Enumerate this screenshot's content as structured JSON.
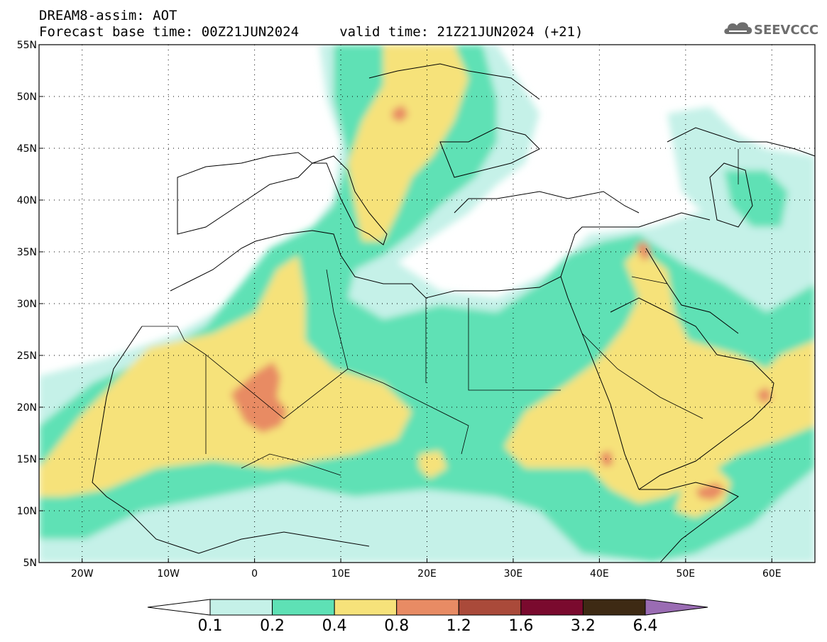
{
  "header": {
    "title_line1": "DREAM8-assim: AOT",
    "title_line2": "Forecast base time: 00Z21JUN2024     valid time: 21Z21JUN2024 (+21)"
  },
  "logo": {
    "text": "SEEVCCC",
    "icon": "cloud-logo-icon"
  },
  "map": {
    "lon_range": [
      -25,
      65
    ],
    "lat_range": [
      5,
      55
    ],
    "lat_ticks": [
      {
        "value": 55,
        "label": "55N"
      },
      {
        "value": 50,
        "label": "50N"
      },
      {
        "value": 45,
        "label": "45N"
      },
      {
        "value": 40,
        "label": "40N"
      },
      {
        "value": 35,
        "label": "35N"
      },
      {
        "value": 30,
        "label": "30N"
      },
      {
        "value": 25,
        "label": "25N"
      },
      {
        "value": 20,
        "label": "20N"
      },
      {
        "value": 15,
        "label": "15N"
      },
      {
        "value": 10,
        "label": "10N"
      },
      {
        "value": 5,
        "label": "5N"
      }
    ],
    "lon_ticks": [
      {
        "value": -20,
        "label": "20W"
      },
      {
        "value": -10,
        "label": "10W"
      },
      {
        "value": 0,
        "label": "0"
      },
      {
        "value": 10,
        "label": "10E"
      },
      {
        "value": 20,
        "label": "20E"
      },
      {
        "value": 30,
        "label": "30E"
      },
      {
        "value": 40,
        "label": "40E"
      },
      {
        "value": 50,
        "label": "50E"
      },
      {
        "value": 60,
        "label": "60E"
      }
    ],
    "grid": "dotted"
  },
  "colorbar": {
    "colors": [
      "#ffffff",
      "#c5f1e8",
      "#5ee1b5",
      "#f6e27a",
      "#e88b64",
      "#aa4a3a",
      "#7a0a2e",
      "#3e2a14",
      "#9a6cb3"
    ],
    "labels": [
      "0.1",
      "0.2",
      "0.4",
      "0.8",
      "1.2",
      "1.6",
      "3.2",
      "6.4"
    ]
  }
}
